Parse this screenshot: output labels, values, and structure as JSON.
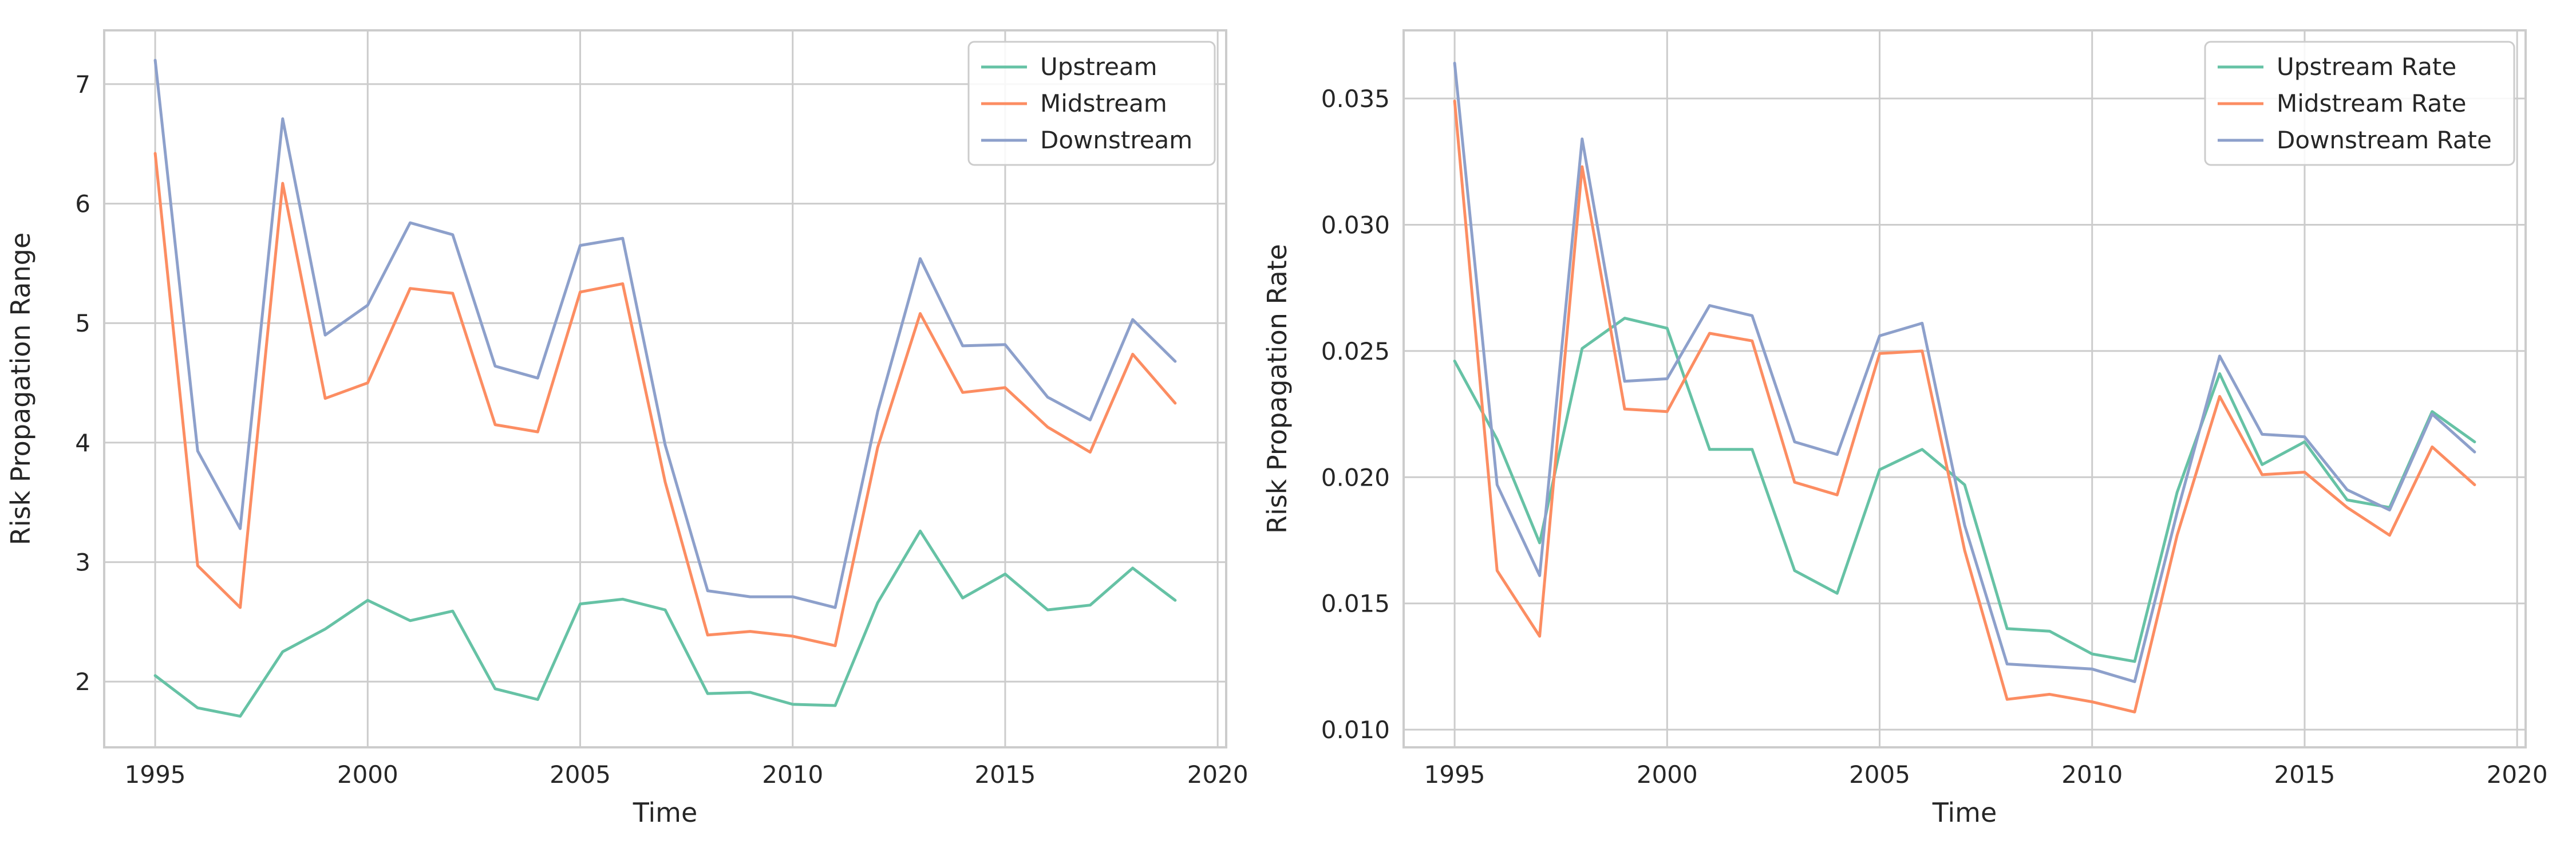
{
  "chart_data": [
    {
      "type": "line",
      "title": "",
      "xlabel": "Time",
      "ylabel": "Risk Propagation Range",
      "xlim": [
        1993.8,
        2020.2
      ],
      "ylim": [
        1.45,
        7.45
      ],
      "xticks": [
        1995,
        2000,
        2005,
        2010,
        2015,
        2020
      ],
      "yticks": [
        2,
        3,
        4,
        5,
        6,
        7
      ],
      "grid": true,
      "legend_position": "top-right",
      "x": [
        1995,
        1996,
        1997,
        1998,
        1999,
        2000,
        2001,
        2002,
        2003,
        2004,
        2005,
        2006,
        2007,
        2008,
        2009,
        2010,
        2011,
        2012,
        2013,
        2014,
        2015,
        2016,
        2017,
        2018,
        2019
      ],
      "series": [
        {
          "name": "Upstream",
          "color": "#66c2a5",
          "values": [
            2.05,
            1.78,
            1.71,
            2.25,
            2.44,
            2.68,
            2.51,
            2.59,
            1.94,
            1.85,
            2.65,
            2.69,
            2.6,
            1.9,
            1.91,
            1.81,
            1.8,
            2.66,
            3.26,
            2.7,
            2.9,
            2.6,
            2.64,
            2.95,
            2.68
          ]
        },
        {
          "name": "Midstream",
          "color": "#fc8d62",
          "values": [
            6.42,
            2.97,
            2.62,
            6.17,
            4.37,
            4.5,
            5.29,
            5.25,
            4.15,
            4.09,
            5.26,
            5.33,
            3.67,
            2.39,
            2.42,
            2.38,
            2.3,
            3.96,
            5.08,
            4.42,
            4.46,
            4.13,
            3.92,
            4.74,
            4.33
          ]
        },
        {
          "name": "Downstream",
          "color": "#8da0cb",
          "values": [
            7.2,
            3.93,
            3.28,
            6.71,
            4.9,
            5.15,
            5.84,
            5.74,
            4.64,
            4.54,
            5.65,
            5.71,
            3.98,
            2.76,
            2.71,
            2.71,
            2.62,
            4.26,
            5.54,
            4.81,
            4.82,
            4.38,
            4.19,
            5.03,
            4.68
          ]
        }
      ]
    },
    {
      "type": "line",
      "title": "",
      "xlabel": "Time",
      "ylabel": "Risk Propagation Rate",
      "xlim": [
        1993.8,
        2020.2
      ],
      "ylim": [
        0.0093,
        0.0377
      ],
      "xticks": [
        1995,
        2000,
        2005,
        2010,
        2015,
        2020
      ],
      "yticks": [
        0.01,
        0.015,
        0.02,
        0.025,
        0.03,
        0.035
      ],
      "ytick_labels": [
        "0.010",
        "0.015",
        "0.020",
        "0.025",
        "0.030",
        "0.035"
      ],
      "grid": true,
      "legend_position": "top-right",
      "x": [
        1995,
        1996,
        1997,
        1998,
        1999,
        2000,
        2001,
        2002,
        2003,
        2004,
        2005,
        2006,
        2007,
        2008,
        2009,
        2010,
        2011,
        2012,
        2013,
        2014,
        2015,
        2016,
        2017,
        2018,
        2019
      ],
      "series": [
        {
          "name": "Upstream Rate",
          "color": "#66c2a5",
          "values": [
            0.0246,
            0.0215,
            0.0174,
            0.0251,
            0.0263,
            0.0259,
            0.0211,
            0.0211,
            0.0163,
            0.0154,
            0.0203,
            0.0211,
            0.0197,
            0.014,
            0.0139,
            0.013,
            0.0127,
            0.0194,
            0.0241,
            0.0205,
            0.0214,
            0.0191,
            0.0188,
            0.0226,
            0.0214
          ]
        },
        {
          "name": "Midstream Rate",
          "color": "#fc8d62",
          "values": [
            0.0349,
            0.0163,
            0.0137,
            0.0323,
            0.0227,
            0.0226,
            0.0257,
            0.0254,
            0.0198,
            0.0193,
            0.0249,
            0.025,
            0.0171,
            0.0112,
            0.0114,
            0.0111,
            0.0107,
            0.0177,
            0.0232,
            0.0201,
            0.0202,
            0.0188,
            0.0177,
            0.0212,
            0.0197
          ]
        },
        {
          "name": "Downstream Rate",
          "color": "#8da0cb",
          "values": [
            0.0364,
            0.0197,
            0.0161,
            0.0334,
            0.0238,
            0.0239,
            0.0268,
            0.0264,
            0.0214,
            0.0209,
            0.0256,
            0.0261,
            0.0181,
            0.0126,
            0.0125,
            0.0124,
            0.0119,
            0.0186,
            0.0248,
            0.0217,
            0.0216,
            0.0195,
            0.0187,
            0.0225,
            0.021
          ]
        }
      ]
    }
  ]
}
